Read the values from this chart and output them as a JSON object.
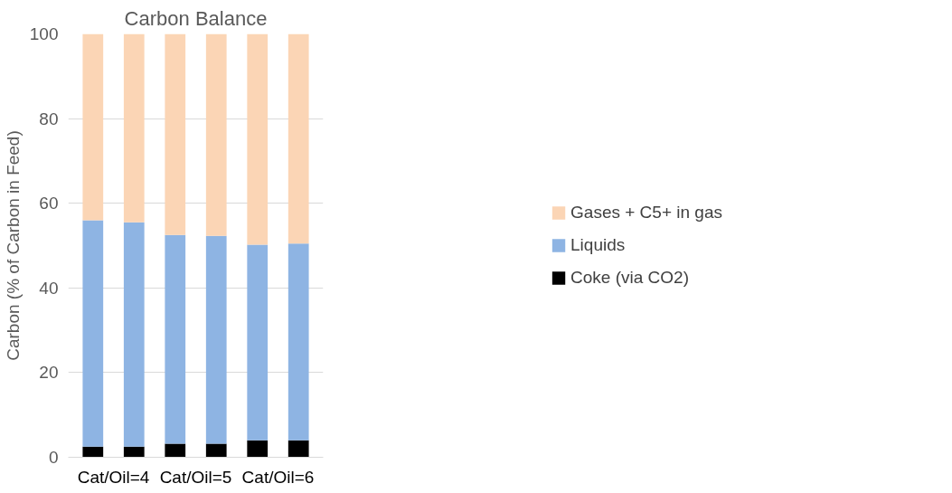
{
  "chart_data": {
    "type": "bar",
    "title": "Carbon Balance",
    "ylabel": "Carbon (% of Carbon in Feed)",
    "stacked": true,
    "categories": [
      "Cat/Oil=4",
      null,
      "Cat/Oil=5",
      null,
      "Cat/Oil=6",
      null
    ],
    "series": [
      {
        "name": "Coke (via CO2)",
        "color": "#000000",
        "values": [
          2.5,
          2.5,
          3.2,
          3.2,
          4.0,
          4.0
        ]
      },
      {
        "name": "Liquids",
        "color": "#8eb4e3",
        "values": [
          53.5,
          53.0,
          49.3,
          49.1,
          46.2,
          46.5
        ]
      },
      {
        "name": "Gases + C5+ in gas",
        "color": "#fbd5b5",
        "values": [
          44.0,
          44.5,
          47.5,
          47.7,
          49.8,
          49.5
        ]
      }
    ],
    "ylim": [
      0,
      100
    ],
    "yticks": [
      0,
      20,
      40,
      60,
      80,
      100
    ],
    "grid": "y",
    "legend": "right"
  }
}
